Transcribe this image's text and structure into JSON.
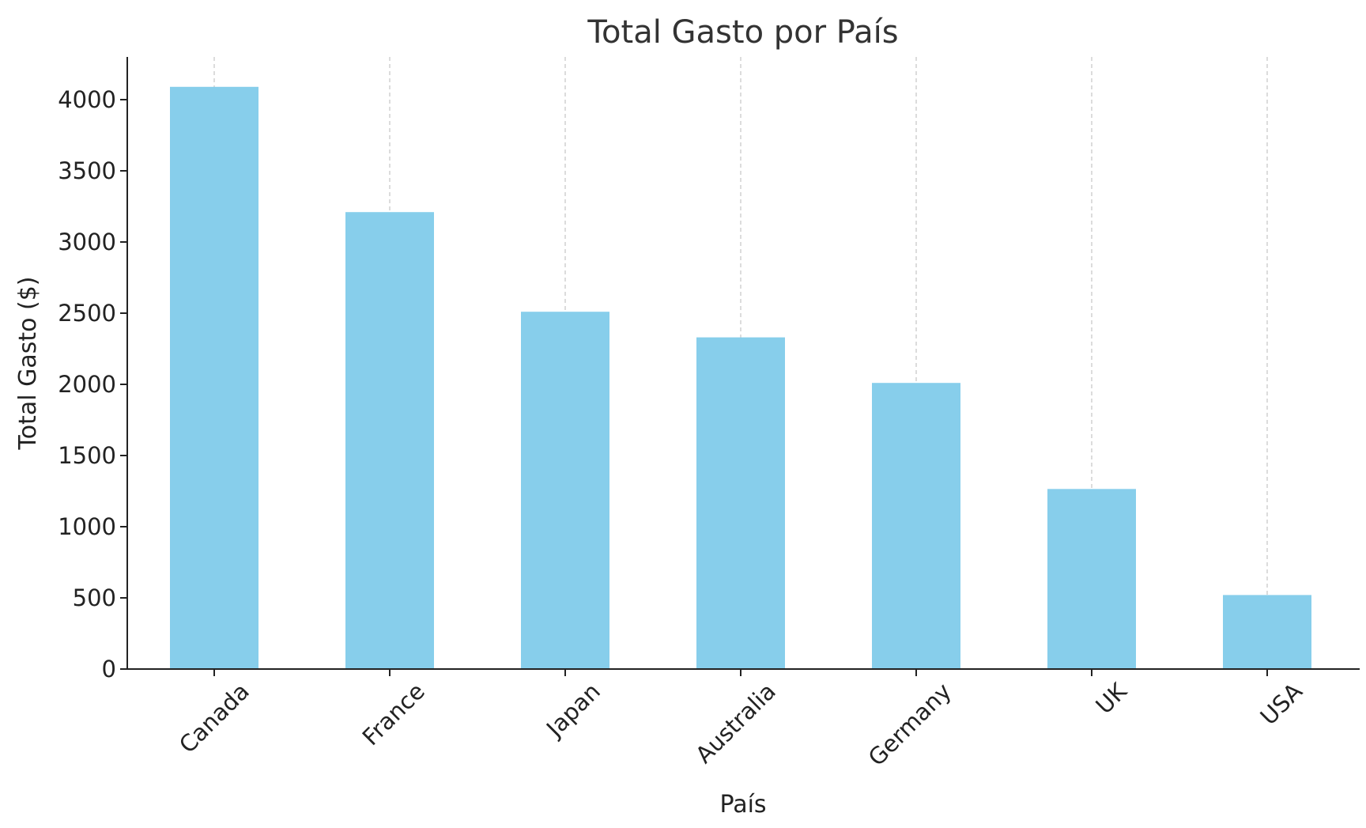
{
  "chart_data": {
    "type": "bar",
    "title": "Total Gasto por País",
    "xlabel": "País",
    "ylabel": "Total Gasto ($)",
    "categories": [
      "Canada",
      "France",
      "Japan",
      "Australia",
      "Germany",
      "UK",
      "USA"
    ],
    "values": [
      4090,
      3210,
      2510,
      2330,
      2010,
      1265,
      520
    ],
    "ylim": [
      0,
      4300
    ],
    "yticks": [
      0,
      500,
      1000,
      1500,
      2000,
      2500,
      3000,
      3500,
      4000
    ],
    "grid": "vertical, dashed",
    "colors": {
      "bar": "#87CEEB",
      "axis": "#222222",
      "grid": "#b8b8b8",
      "title": "#333333"
    }
  }
}
